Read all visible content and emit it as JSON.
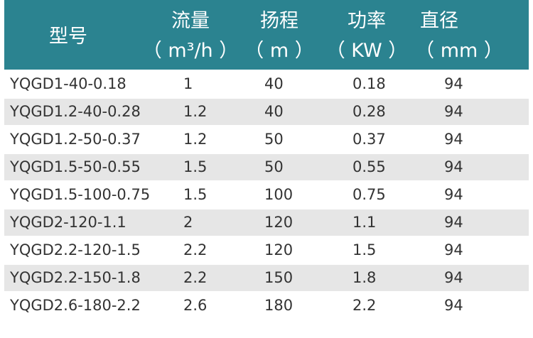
{
  "header": {
    "model": "型号",
    "flow": "流量",
    "flow_unit": "（ m³/h ）",
    "head": "扬程",
    "head_unit": "（ m ）",
    "power": "功率",
    "power_unit": "（ KW ）",
    "diameter": "直径",
    "diameter_unit": "（ mm ）"
  },
  "table": {
    "rows": [
      [
        "YQGD1-40-0.18",
        "1",
        "40",
        "0.18",
        "94"
      ],
      [
        "YQGD1.2-40-0.28",
        "1.2",
        "40",
        "0.28",
        "94"
      ],
      [
        "YQGD1.2-50-0.37",
        "1.2",
        "50",
        "0.37",
        "94"
      ],
      [
        "YQGD1.5-50-0.55",
        "1.5",
        "50",
        "0.55",
        "94"
      ],
      [
        "YQGD1.5-100-0.75",
        "1.5",
        "100",
        "0.75",
        "94"
      ],
      [
        "YQGD2-120-1.1",
        "2",
        "120",
        "1.1",
        "94"
      ],
      [
        "YQGD2.2-120-1.5",
        "2.2",
        "120",
        "1.5",
        "94"
      ],
      [
        "YQGD2.2-150-1.8",
        "2.2",
        "150",
        "1.8",
        "94"
      ],
      [
        "YQGD2.6-180-2.2",
        "2.6",
        "180",
        "2.2",
        "94"
      ]
    ]
  }
}
